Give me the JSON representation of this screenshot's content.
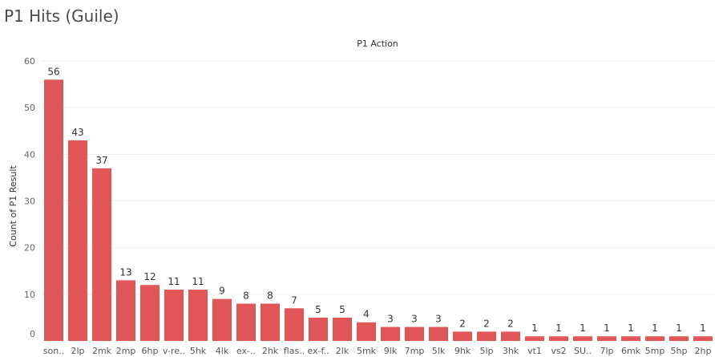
{
  "page": {
    "title": "P1 Hits (Guile)"
  },
  "chart_data": {
    "type": "bar",
    "title": "P1 Action",
    "xlabel": "",
    "ylabel": "Count of P1 Result",
    "ylim": [
      0,
      60
    ],
    "yticks": [
      0,
      10,
      20,
      30,
      40,
      50,
      60
    ],
    "grid": true,
    "bar_color": "#e15759",
    "categories": [
      "son..",
      "2lp",
      "2mk",
      "2mp",
      "6hp",
      "v-re..",
      "5hk",
      "4lk",
      "ex-..",
      "2hk",
      "flas..",
      "ex-f..",
      "2lk",
      "5mk",
      "9lk",
      "7mp",
      "5lk",
      "9hk",
      "5lp",
      "3hk",
      "vt1",
      "vs2",
      "SU..",
      "7lp",
      "6mk",
      "5mp",
      "5hp",
      "2hp"
    ],
    "values": [
      56,
      43,
      37,
      13,
      12,
      11,
      11,
      9,
      8,
      8,
      7,
      5,
      5,
      4,
      3,
      3,
      3,
      2,
      2,
      2,
      1,
      1,
      1,
      1,
      1,
      1,
      1,
      1
    ]
  }
}
